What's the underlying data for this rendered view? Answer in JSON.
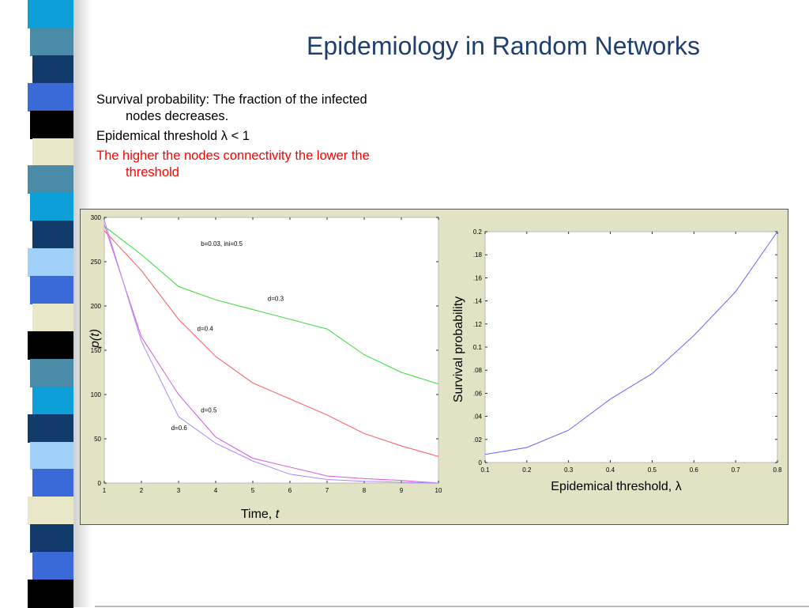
{
  "slide": {
    "title": "Epidemiology in Random Networks",
    "bullets": [
      {
        "text": "Survival probability: The fraction of the infected nodes decreases.",
        "color": "#000000"
      },
      {
        "text": "Epidemical threshold λ < 1",
        "color": "#000000"
      },
      {
        "text": "The higher the nodes connectivity the lower the threshold",
        "color": "#ff0000"
      }
    ]
  },
  "decoration": {
    "stripe_colors": [
      "#0da0d8",
      "#4a8ca8",
      "#123a6a",
      "#3a6ad8",
      "#000000",
      "#e8e8c8",
      "#4a8ca8",
      "#0da0d8",
      "#123a6a",
      "#a0d0f8",
      "#3a6ad8",
      "#e8e8c8",
      "#000000",
      "#4a8ca8",
      "#0da0d8",
      "#123a6a",
      "#a0d0f8",
      "#3a6ad8",
      "#e8e8c8",
      "#123a6a",
      "#3a6ad8",
      "#000000"
    ]
  },
  "chart_data": [
    {
      "type": "line",
      "ylabel": "p(t)",
      "xlabel": "Time, t",
      "xlim": [
        1,
        10
      ],
      "ylim": [
        0,
        300
      ],
      "xticks": [
        1,
        2,
        3,
        4,
        5,
        6,
        7,
        8,
        9,
        10
      ],
      "yticks": [
        0,
        50,
        100,
        150,
        200,
        250,
        300
      ],
      "annotations": [
        {
          "text": "b=0.03, ini=0.5",
          "x": 3.6,
          "y": 268
        },
        {
          "text": "d=0.3",
          "x": 5.4,
          "y": 206
        },
        {
          "text": "d=0.4",
          "x": 3.5,
          "y": 172
        },
        {
          "text": "d=0.5",
          "x": 3.6,
          "y": 80
        },
        {
          "text": "d=0.6",
          "x": 2.8,
          "y": 60
        }
      ],
      "series": [
        {
          "color": "#33dd33",
          "x": [
            1,
            2,
            3,
            4,
            5,
            6,
            7,
            8,
            9,
            10
          ],
          "y": [
            290,
            258,
            222,
            207,
            196,
            185,
            174,
            145,
            125,
            112
          ]
        },
        {
          "color": "#ff5555",
          "x": [
            1,
            2,
            3,
            4,
            5,
            6,
            7,
            8,
            9,
            10
          ],
          "y": [
            285,
            240,
            185,
            143,
            113,
            95,
            77,
            56,
            42,
            30
          ]
        },
        {
          "color": "#dd55dd",
          "x": [
            1,
            2,
            3,
            4,
            5,
            6,
            7,
            8,
            9,
            10
          ],
          "y": [
            292,
            165,
            100,
            52,
            28,
            18,
            8,
            5,
            3,
            0
          ]
        },
        {
          "color": "#aa88ff",
          "x": [
            1,
            2,
            3,
            4,
            5,
            6,
            7,
            8,
            9,
            10
          ],
          "y": [
            297,
            160,
            75,
            45,
            25,
            10,
            4,
            2,
            1,
            0
          ]
        }
      ]
    },
    {
      "type": "line",
      "ylabel": "Survival probability",
      "xlabel": "Epidemical threshold, λ",
      "xlim": [
        0.1,
        0.8
      ],
      "ylim": [
        0,
        0.2
      ],
      "xticks": [
        0.1,
        0.2,
        0.3,
        0.4,
        0.5,
        0.6,
        0.7,
        0.8
      ],
      "yticks": [
        0,
        0.02,
        0.04,
        0.06,
        0.08,
        0.1,
        0.12,
        0.14,
        0.16,
        0.18,
        0.2
      ],
      "ytick_labels": [
        "0",
        ".02",
        ".04",
        ".06",
        ".08",
        "0.1",
        ".12",
        ".14",
        ".16",
        ".18",
        "0.2"
      ],
      "series": [
        {
          "color": "#6666ff",
          "x": [
            0.1,
            0.2,
            0.3,
            0.4,
            0.5,
            0.6,
            0.7,
            0.8
          ],
          "y": [
            0.007,
            0.013,
            0.028,
            0.055,
            0.077,
            0.11,
            0.148,
            0.2
          ]
        }
      ]
    }
  ]
}
